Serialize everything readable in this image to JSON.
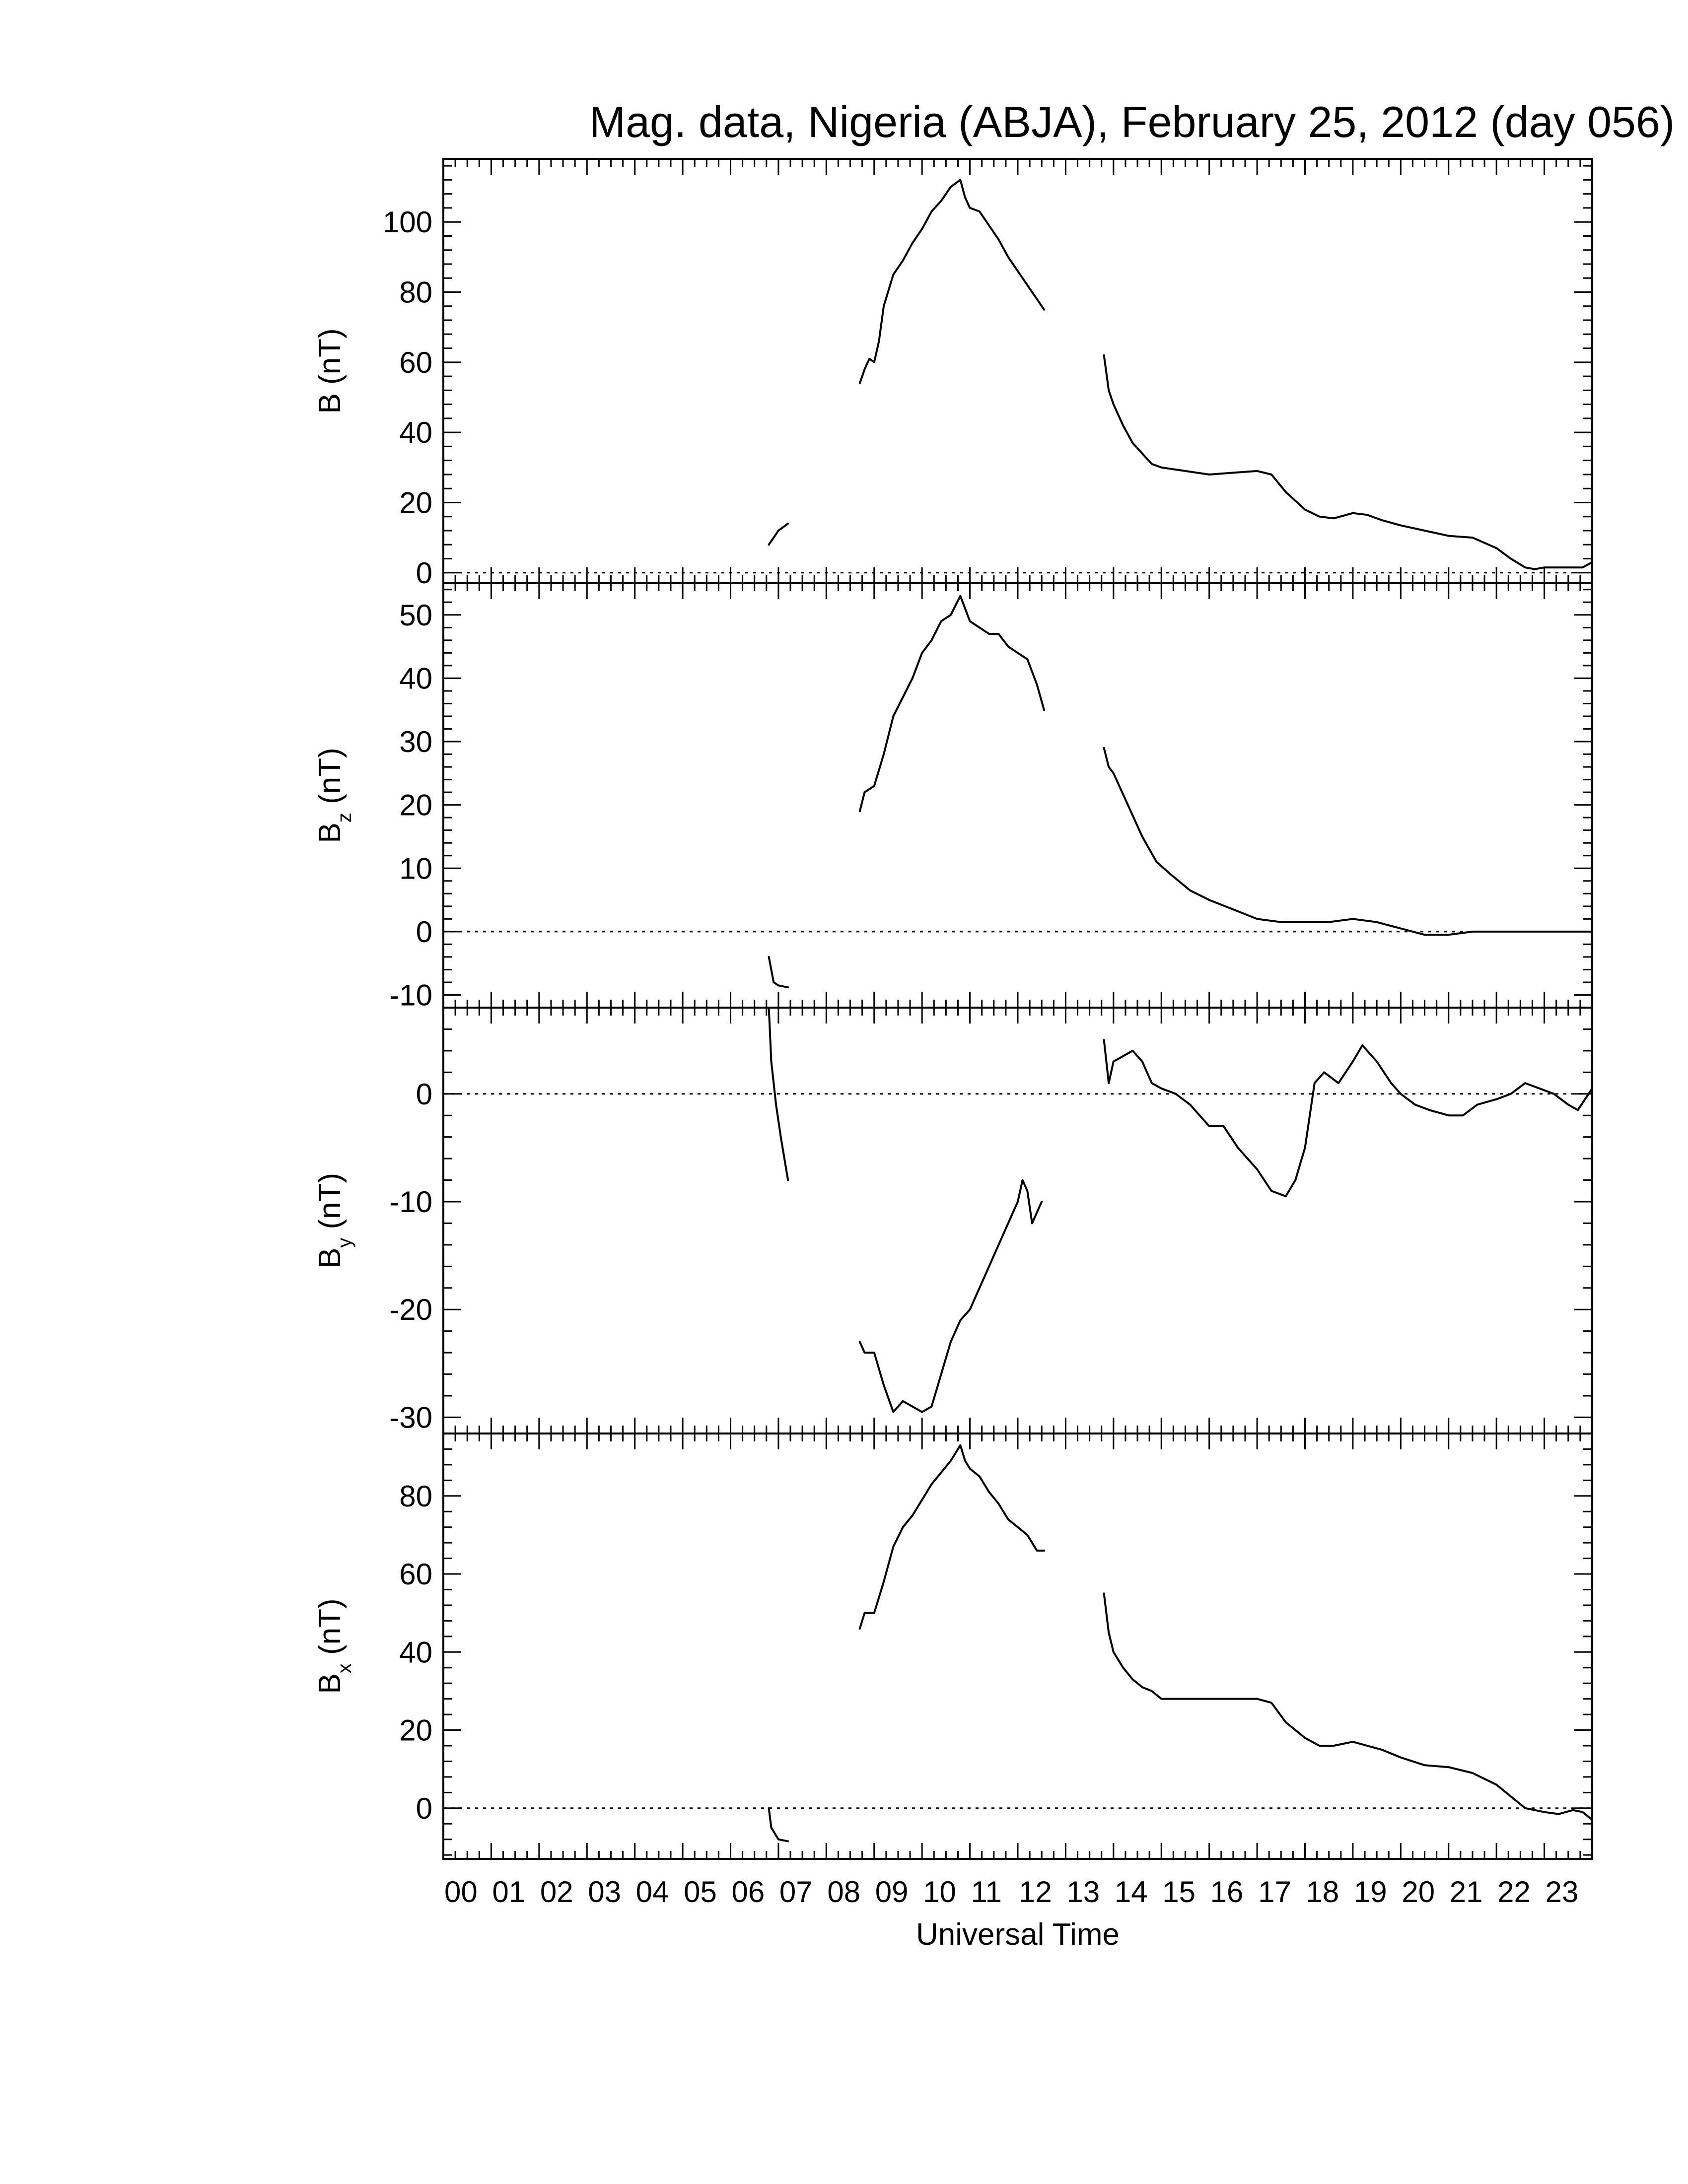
{
  "chart_data": {
    "type": "line",
    "title": "Mag. data, Nigeria (ABJA), February 25, 2012 (day 056)",
    "xlabel": "Universal Time",
    "x_unit": "hour (UT)",
    "xlim": [
      0,
      24
    ],
    "x_tick_labels": [
      "00",
      "01",
      "02",
      "03",
      "04",
      "05",
      "06",
      "07",
      "08",
      "09",
      "10",
      "11",
      "12",
      "13",
      "14",
      "15",
      "16",
      "17",
      "18",
      "19",
      "20",
      "21",
      "22",
      "23"
    ],
    "zero_line": "dotted",
    "panels": [
      {
        "name": "B",
        "ylabel": "B (nT)",
        "ylabel_base": "B",
        "ylabel_sub": "",
        "ylabel_unit": "(nT)",
        "ylim": [
          -3,
          118
        ],
        "yticks": [
          0,
          20,
          40,
          60,
          80,
          100
        ],
        "segments": [
          [
            [
              6.8,
              8
            ],
            [
              6.9,
              10
            ],
            [
              7.0,
              12
            ],
            [
              7.1,
              13
            ],
            [
              7.2,
              14
            ]
          ],
          [
            [
              8.7,
              54
            ],
            [
              8.8,
              58
            ],
            [
              8.9,
              61
            ],
            [
              9.0,
              60
            ],
            [
              9.1,
              66
            ],
            [
              9.2,
              76
            ],
            [
              9.4,
              85
            ],
            [
              9.6,
              89
            ],
            [
              9.8,
              94
            ],
            [
              10.0,
              98
            ],
            [
              10.2,
              103
            ],
            [
              10.4,
              106
            ],
            [
              10.6,
              110
            ],
            [
              10.8,
              112
            ],
            [
              10.9,
              107
            ],
            [
              11.0,
              104
            ],
            [
              11.2,
              103
            ],
            [
              11.4,
              99
            ],
            [
              11.6,
              95
            ],
            [
              11.8,
              90
            ],
            [
              12.0,
              86
            ],
            [
              12.2,
              82
            ],
            [
              12.4,
              78
            ],
            [
              12.55,
              75
            ]
          ],
          [
            [
              13.8,
              62
            ],
            [
              13.9,
              52
            ],
            [
              14.0,
              48
            ],
            [
              14.2,
              42
            ],
            [
              14.4,
              37
            ],
            [
              14.6,
              34
            ],
            [
              14.8,
              31
            ],
            [
              15.0,
              30
            ],
            [
              15.5,
              29
            ],
            [
              16.0,
              28
            ],
            [
              16.5,
              28.5
            ],
            [
              17.0,
              29
            ],
            [
              17.3,
              28
            ],
            [
              17.6,
              23
            ],
            [
              18.0,
              18
            ],
            [
              18.3,
              16
            ],
            [
              18.6,
              15.5
            ],
            [
              19.0,
              17
            ],
            [
              19.3,
              16.5
            ],
            [
              19.6,
              15
            ],
            [
              20.0,
              13.5
            ],
            [
              20.5,
              12
            ],
            [
              21.0,
              10.5
            ],
            [
              21.5,
              10
            ],
            [
              22.0,
              7
            ],
            [
              22.3,
              4
            ],
            [
              22.6,
              1.5
            ],
            [
              22.8,
              1
            ],
            [
              23.0,
              1.5
            ],
            [
              23.5,
              1.5
            ],
            [
              23.8,
              1.5
            ],
            [
              24.0,
              3
            ]
          ]
        ]
      },
      {
        "name": "Bz",
        "ylabel": "Bz (nT)",
        "ylabel_base": "B",
        "ylabel_sub": "z",
        "ylabel_unit": "(nT)",
        "ylim": [
          -12,
          55
        ],
        "yticks": [
          -10,
          0,
          10,
          20,
          30,
          40,
          50
        ],
        "segments": [
          [
            [
              6.8,
              -4
            ],
            [
              6.9,
              -8
            ],
            [
              7.0,
              -8.5
            ],
            [
              7.2,
              -8.8
            ]
          ],
          [
            [
              8.7,
              19
            ],
            [
              8.8,
              22
            ],
            [
              9.0,
              23
            ],
            [
              9.2,
              28
            ],
            [
              9.4,
              34
            ],
            [
              9.6,
              37
            ],
            [
              9.8,
              40
            ],
            [
              10.0,
              44
            ],
            [
              10.2,
              46
            ],
            [
              10.4,
              49
            ],
            [
              10.6,
              50
            ],
            [
              10.8,
              53
            ],
            [
              10.9,
              51
            ],
            [
              11.0,
              49
            ],
            [
              11.2,
              48
            ],
            [
              11.4,
              47
            ],
            [
              11.6,
              47
            ],
            [
              11.8,
              45
            ],
            [
              12.0,
              44
            ],
            [
              12.2,
              43
            ],
            [
              12.4,
              39
            ],
            [
              12.55,
              35
            ]
          ],
          [
            [
              13.8,
              29
            ],
            [
              13.9,
              26
            ],
            [
              14.0,
              25
            ],
            [
              14.3,
              20
            ],
            [
              14.6,
              15
            ],
            [
              14.9,
              11
            ],
            [
              15.2,
              9
            ],
            [
              15.6,
              6.5
            ],
            [
              16.0,
              5
            ],
            [
              16.5,
              3.5
            ],
            [
              17.0,
              2
            ],
            [
              17.5,
              1.5
            ],
            [
              18.0,
              1.5
            ],
            [
              18.5,
              1.5
            ],
            [
              19.0,
              2
            ],
            [
              19.5,
              1.5
            ],
            [
              20.0,
              0.5
            ],
            [
              20.5,
              -0.5
            ],
            [
              21.0,
              -0.5
            ],
            [
              21.5,
              0
            ],
            [
              22.0,
              0
            ],
            [
              22.5,
              0
            ],
            [
              23.0,
              0
            ],
            [
              23.5,
              0
            ],
            [
              24.0,
              0
            ]
          ]
        ]
      },
      {
        "name": "By",
        "ylabel": "By (nT)",
        "ylabel_base": "B",
        "ylabel_sub": "y",
        "ylabel_unit": "(nT)",
        "ylim": [
          -31.5,
          8
        ],
        "yticks": [
          -30,
          -20,
          -10,
          0
        ],
        "segments": [
          [
            [
              6.8,
              8
            ],
            [
              6.85,
              3
            ],
            [
              6.95,
              -1
            ],
            [
              7.05,
              -4
            ],
            [
              7.2,
              -8
            ]
          ],
          [
            [
              8.7,
              -23
            ],
            [
              8.8,
              -24
            ],
            [
              9.0,
              -24
            ],
            [
              9.2,
              -27
            ],
            [
              9.4,
              -29.5
            ],
            [
              9.6,
              -28.5
            ],
            [
              9.8,
              -29
            ],
            [
              10.0,
              -29.5
            ],
            [
              10.2,
              -29
            ],
            [
              10.4,
              -26
            ],
            [
              10.6,
              -23
            ],
            [
              10.8,
              -21
            ],
            [
              11.0,
              -20
            ],
            [
              11.2,
              -18
            ],
            [
              11.4,
              -16
            ],
            [
              11.6,
              -14
            ],
            [
              11.8,
              -12
            ],
            [
              12.0,
              -10
            ],
            [
              12.1,
              -8
            ],
            [
              12.2,
              -9
            ],
            [
              12.3,
              -12
            ],
            [
              12.4,
              -11
            ],
            [
              12.5,
              -10
            ]
          ],
          [
            [
              13.8,
              5
            ],
            [
              13.9,
              1
            ],
            [
              14.0,
              3
            ],
            [
              14.2,
              3.5
            ],
            [
              14.4,
              4
            ],
            [
              14.6,
              3
            ],
            [
              14.8,
              1
            ],
            [
              15.0,
              0.5
            ],
            [
              15.3,
              0
            ],
            [
              15.6,
              -1
            ],
            [
              16.0,
              -3
            ],
            [
              16.3,
              -3
            ],
            [
              16.6,
              -5
            ],
            [
              17.0,
              -7
            ],
            [
              17.3,
              -9
            ],
            [
              17.6,
              -9.5
            ],
            [
              17.8,
              -8
            ],
            [
              18.0,
              -5
            ],
            [
              18.2,
              1
            ],
            [
              18.4,
              2
            ],
            [
              18.7,
              1
            ],
            [
              19.0,
              3
            ],
            [
              19.2,
              4.5
            ],
            [
              19.5,
              3
            ],
            [
              19.8,
              1
            ],
            [
              20.0,
              0
            ],
            [
              20.3,
              -1
            ],
            [
              20.6,
              -1.5
            ],
            [
              21.0,
              -2
            ],
            [
              21.3,
              -2
            ],
            [
              21.6,
              -1
            ],
            [
              22.0,
              -0.5
            ],
            [
              22.3,
              0
            ],
            [
              22.6,
              1
            ],
            [
              22.9,
              0.5
            ],
            [
              23.2,
              0
            ],
            [
              23.5,
              -1
            ],
            [
              23.7,
              -1.5
            ],
            [
              24.0,
              0.5
            ]
          ]
        ]
      },
      {
        "name": "Bx",
        "ylabel": "Bx (nT)",
        "ylabel_base": "B",
        "ylabel_sub": "x",
        "ylabel_unit": "(nT)",
        "ylim": [
          -13,
          96
        ],
        "yticks": [
          0,
          20,
          40,
          60,
          80
        ],
        "segments": [
          [
            [
              6.8,
              0
            ],
            [
              6.85,
              -5
            ],
            [
              7.0,
              -8
            ],
            [
              7.2,
              -8.5
            ]
          ],
          [
            [
              8.7,
              46
            ],
            [
              8.8,
              50
            ],
            [
              9.0,
              50
            ],
            [
              9.2,
              58
            ],
            [
              9.4,
              67
            ],
            [
              9.6,
              72
            ],
            [
              9.8,
              75
            ],
            [
              10.0,
              79
            ],
            [
              10.2,
              83
            ],
            [
              10.4,
              86
            ],
            [
              10.6,
              89
            ],
            [
              10.8,
              93
            ],
            [
              10.9,
              89
            ],
            [
              11.0,
              87
            ],
            [
              11.2,
              85
            ],
            [
              11.4,
              81
            ],
            [
              11.6,
              78
            ],
            [
              11.8,
              74
            ],
            [
              12.0,
              72
            ],
            [
              12.2,
              70
            ],
            [
              12.4,
              66
            ],
            [
              12.55,
              66
            ]
          ],
          [
            [
              13.8,
              55
            ],
            [
              13.9,
              45
            ],
            [
              14.0,
              40
            ],
            [
              14.2,
              36
            ],
            [
              14.4,
              33
            ],
            [
              14.6,
              31
            ],
            [
              14.8,
              30
            ],
            [
              15.0,
              28
            ],
            [
              15.5,
              28
            ],
            [
              16.0,
              28
            ],
            [
              16.5,
              28
            ],
            [
              17.0,
              28
            ],
            [
              17.3,
              27
            ],
            [
              17.6,
              22
            ],
            [
              18.0,
              18
            ],
            [
              18.3,
              16
            ],
            [
              18.6,
              16
            ],
            [
              19.0,
              17
            ],
            [
              19.3,
              16
            ],
            [
              19.6,
              15
            ],
            [
              20.0,
              13
            ],
            [
              20.5,
              11
            ],
            [
              21.0,
              10.5
            ],
            [
              21.5,
              9
            ],
            [
              22.0,
              6
            ],
            [
              22.3,
              3
            ],
            [
              22.6,
              0
            ],
            [
              22.8,
              -0.5
            ],
            [
              23.0,
              -1
            ],
            [
              23.3,
              -1.5
            ],
            [
              23.6,
              -0.5
            ],
            [
              23.8,
              -1
            ],
            [
              24.0,
              -3
            ]
          ]
        ]
      }
    ]
  }
}
